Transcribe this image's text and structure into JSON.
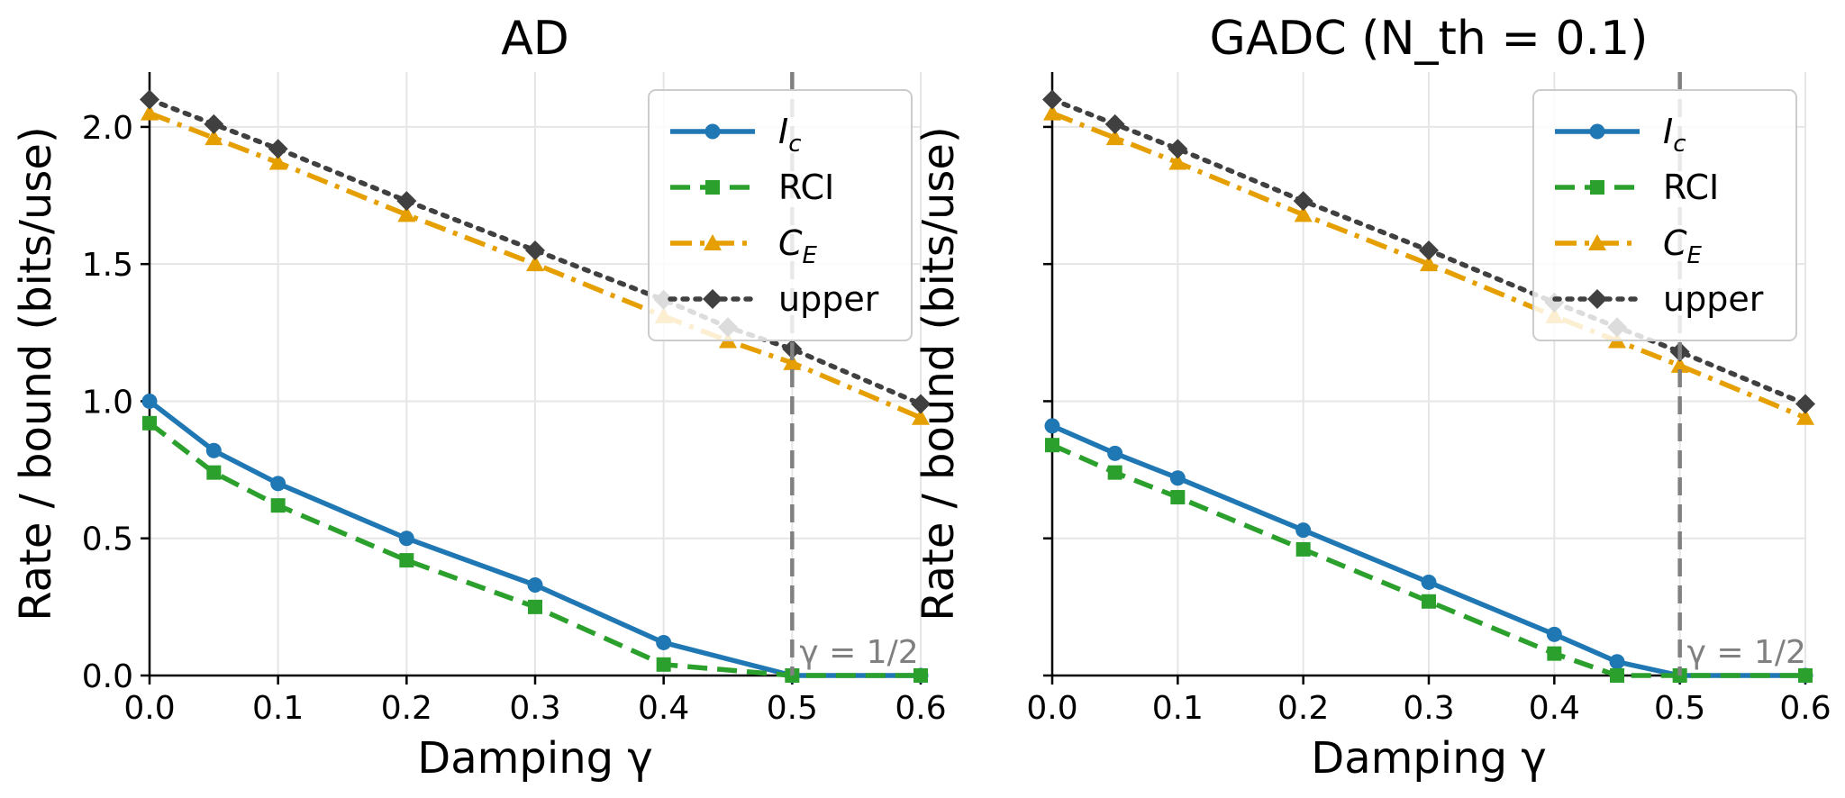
{
  "colors": {
    "ic": "#1f77b4",
    "rci": "#2ca02c",
    "ce": "#e69f00",
    "upper": "#404040",
    "vline": "#808080",
    "grid": "#e6e6e6"
  },
  "chart_data": [
    {
      "type": "line",
      "title": "AD",
      "xlabel": "Damping γ",
      "ylabel": "Rate / bound (bits/use)",
      "xlim": [
        0,
        0.6
      ],
      "ylim": [
        0,
        2.2
      ],
      "xticks": [
        "0.0",
        "0.1",
        "0.2",
        "0.3",
        "0.4",
        "0.5",
        "0.6"
      ],
      "yticks": [
        "0.0",
        "0.5",
        "1.0",
        "1.5",
        "2.0"
      ],
      "show_ytick_labels": true,
      "grid": true,
      "legend_position": "top-right",
      "vline": {
        "x": 0.5,
        "label": "γ = 1/2"
      },
      "series": [
        {
          "name": "I",
          "sub": "c",
          "key": "ic",
          "style": "solid",
          "marker": "circle",
          "x": [
            0,
            0.05,
            0.1,
            0.2,
            0.3,
            0.4,
            0.5,
            0.6
          ],
          "y": [
            1.0,
            0.82,
            0.7,
            0.5,
            0.33,
            0.12,
            0.0,
            0.0
          ]
        },
        {
          "name": "RCI",
          "sub": "",
          "key": "rci",
          "style": "dashed",
          "marker": "square",
          "x": [
            0,
            0.05,
            0.1,
            0.2,
            0.3,
            0.4,
            0.5,
            0.6
          ],
          "y": [
            0.92,
            0.74,
            0.62,
            0.42,
            0.25,
            0.04,
            0.0,
            0.0
          ]
        },
        {
          "name": "C",
          "sub": "E",
          "key": "ce",
          "style": "dashdot",
          "marker": "triangle",
          "x": [
            0,
            0.05,
            0.1,
            0.2,
            0.3,
            0.4,
            0.45,
            0.5,
            0.6
          ],
          "y": [
            2.05,
            1.96,
            1.87,
            1.68,
            1.5,
            1.31,
            1.22,
            1.14,
            0.94
          ]
        },
        {
          "name": "upper",
          "sub": "",
          "key": "upper",
          "style": "dotted",
          "marker": "diamond",
          "x": [
            0,
            0.05,
            0.1,
            0.2,
            0.3,
            0.4,
            0.45,
            0.5,
            0.6
          ],
          "y": [
            2.1,
            2.01,
            1.92,
            1.73,
            1.55,
            1.37,
            1.27,
            1.19,
            0.99
          ]
        }
      ]
    },
    {
      "type": "line",
      "title": "GADC (N_th = 0.1)",
      "xlabel": "Damping γ",
      "ylabel": "Rate / bound (bits/use)",
      "xlim": [
        0,
        0.6
      ],
      "ylim": [
        0,
        2.2
      ],
      "xticks": [
        "0.0",
        "0.1",
        "0.2",
        "0.3",
        "0.4",
        "0.5",
        "0.6"
      ],
      "yticks": [
        "0.0",
        "0.5",
        "1.0",
        "1.5",
        "2.0"
      ],
      "show_ytick_labels": false,
      "grid": true,
      "legend_position": "top-right",
      "vline": {
        "x": 0.5,
        "label": "γ = 1/2"
      },
      "series": [
        {
          "name": "I",
          "sub": "c",
          "key": "ic",
          "style": "solid",
          "marker": "circle",
          "x": [
            0,
            0.05,
            0.1,
            0.2,
            0.3,
            0.4,
            0.45,
            0.5,
            0.6
          ],
          "y": [
            0.91,
            0.81,
            0.72,
            0.53,
            0.34,
            0.15,
            0.05,
            0.0,
            0.0
          ]
        },
        {
          "name": "RCI",
          "sub": "",
          "key": "rci",
          "style": "dashed",
          "marker": "square",
          "x": [
            0,
            0.05,
            0.1,
            0.2,
            0.3,
            0.4,
            0.45,
            0.5,
            0.6
          ],
          "y": [
            0.84,
            0.74,
            0.65,
            0.46,
            0.27,
            0.08,
            0.0,
            0.0,
            0.0
          ]
        },
        {
          "name": "C",
          "sub": "E",
          "key": "ce",
          "style": "dashdot",
          "marker": "triangle",
          "x": [
            0,
            0.05,
            0.1,
            0.2,
            0.3,
            0.4,
            0.45,
            0.5,
            0.6
          ],
          "y": [
            2.05,
            1.96,
            1.87,
            1.68,
            1.5,
            1.31,
            1.22,
            1.13,
            0.94
          ]
        },
        {
          "name": "upper",
          "sub": "",
          "key": "upper",
          "style": "dotted",
          "marker": "diamond",
          "x": [
            0,
            0.05,
            0.1,
            0.2,
            0.3,
            0.4,
            0.45,
            0.5,
            0.6
          ],
          "y": [
            2.1,
            2.01,
            1.92,
            1.73,
            1.55,
            1.36,
            1.27,
            1.18,
            0.99
          ]
        }
      ]
    }
  ]
}
